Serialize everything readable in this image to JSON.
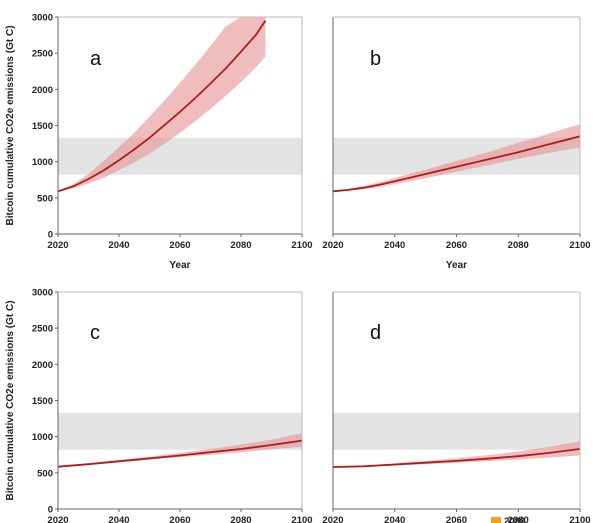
{
  "chart_data": [
    {
      "type": "line",
      "panel_label": "a",
      "xlabel": "Year",
      "ylabel": "Bitcoin cumulative CO2e emissions (Gt C)",
      "xlim": [
        2020,
        2100
      ],
      "ylim": [
        0,
        3000
      ],
      "x_ticks": [
        "2020",
        "2040",
        "2060",
        "2080",
        "2100"
      ],
      "y_ticks": [
        "0",
        "500",
        "1000",
        "1500",
        "2000",
        "2500",
        "3000"
      ],
      "reference_band": {
        "low": 820,
        "high": 1330,
        "color": "#e3e3e3"
      },
      "series": [
        {
          "color": "#b01c1c",
          "band_color": "#e79a9a",
          "x": [
            2020,
            2025,
            2030,
            2035,
            2040,
            2045,
            2050,
            2055,
            2060,
            2065,
            2070,
            2075,
            2080,
            2085,
            2088
          ],
          "y": [
            590,
            660,
            760,
            880,
            1020,
            1170,
            1330,
            1510,
            1690,
            1880,
            2080,
            2290,
            2520,
            2760,
            2950
          ],
          "upper": [
            600,
            690,
            830,
            1010,
            1200,
            1400,
            1620,
            1850,
            2090,
            2340,
            2600,
            2870,
            3000,
            3000,
            3000
          ],
          "lower": [
            580,
            630,
            700,
            780,
            880,
            990,
            1110,
            1250,
            1400,
            1560,
            1730,
            1910,
            2100,
            2310,
            2450
          ]
        }
      ]
    },
    {
      "type": "line",
      "panel_label": "b",
      "xlabel": "Year",
      "ylabel": "",
      "xlim": [
        2020,
        2100
      ],
      "ylim": [
        0,
        3000
      ],
      "x_ticks": [
        "2020",
        "2040",
        "2060",
        "2080",
        "2100"
      ],
      "y_ticks": [],
      "reference_band": {
        "low": 820,
        "high": 1330,
        "color": "#e3e3e3"
      },
      "series": [
        {
          "color": "#b01c1c",
          "band_color": "#e79a9a",
          "x": [
            2020,
            2025,
            2030,
            2035,
            2040,
            2050,
            2060,
            2070,
            2080,
            2090,
            2100
          ],
          "y": [
            590,
            610,
            640,
            680,
            730,
            830,
            930,
            1030,
            1130,
            1240,
            1350
          ],
          "upper": [
            595,
            625,
            665,
            715,
            775,
            890,
            1010,
            1130,
            1260,
            1390,
            1520
          ],
          "lower": [
            585,
            600,
            620,
            650,
            690,
            770,
            860,
            950,
            1040,
            1120,
            1200
          ]
        }
      ]
    },
    {
      "type": "line",
      "panel_label": "c",
      "xlabel": "",
      "ylabel": "Bitcoin cumulative CO2e emissions (Gt C)",
      "xlim": [
        2020,
        2100
      ],
      "ylim": [
        0,
        3000
      ],
      "x_ticks": [
        "2020",
        "2040",
        "2060",
        "2080",
        "2100"
      ],
      "y_ticks": [
        "0",
        "500",
        "1000",
        "1500",
        "2000",
        "2500",
        "3000"
      ],
      "reference_band": {
        "low": 820,
        "high": 1330,
        "color": "#e3e3e3"
      },
      "series": [
        {
          "color": "#b01c1c",
          "band_color": "#e79a9a",
          "x": [
            2020,
            2030,
            2040,
            2050,
            2060,
            2070,
            2080,
            2090,
            2100
          ],
          "y": [
            585,
            620,
            660,
            700,
            740,
            785,
            830,
            885,
            945
          ],
          "upper": [
            590,
            630,
            680,
            725,
            775,
            830,
            890,
            960,
            1050
          ],
          "lower": [
            580,
            610,
            645,
            680,
            715,
            750,
            785,
            825,
            860
          ]
        }
      ]
    },
    {
      "type": "line",
      "panel_label": "d",
      "xlabel": "",
      "ylabel": "",
      "xlim": [
        2020,
        2100
      ],
      "ylim": [
        0,
        3000
      ],
      "x_ticks": [
        "2020",
        "2040",
        "2060",
        "2080",
        "2100"
      ],
      "y_ticks": [],
      "reference_band": {
        "low": 820,
        "high": 1330,
        "color": "#e3e3e3"
      },
      "series": [
        {
          "color": "#b01c1c",
          "band_color": "#e79a9a",
          "x": [
            2020,
            2030,
            2040,
            2050,
            2060,
            2070,
            2080,
            2090,
            2100
          ],
          "y": [
            580,
            590,
            615,
            640,
            665,
            695,
            730,
            775,
            830
          ],
          "upper": [
            585,
            600,
            630,
            665,
            700,
            745,
            795,
            860,
            935
          ],
          "lower": [
            578,
            585,
            600,
            620,
            640,
            660,
            685,
            710,
            740
          ]
        }
      ]
    }
  ],
  "legend": {
    "entries": [
      {
        "label": "2080",
        "color": "#f0a020"
      }
    ]
  }
}
